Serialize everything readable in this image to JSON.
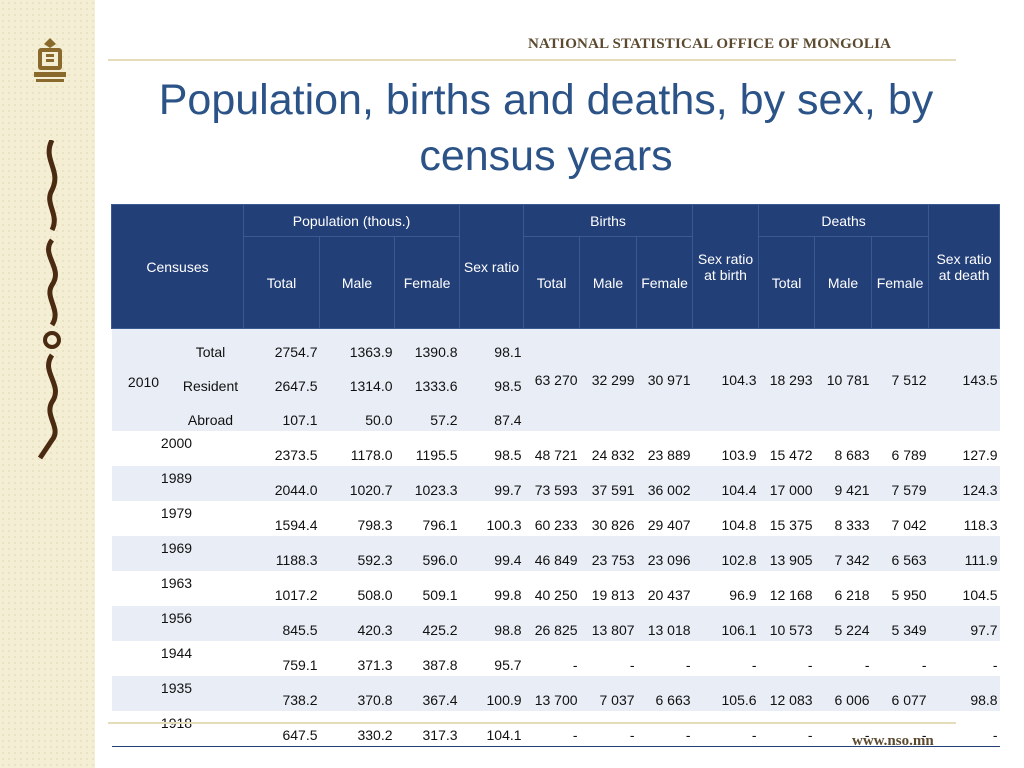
{
  "header": {
    "org_name": "NATIONAL STATISTICAL OFFICE OF MONGOLIA",
    "title": "Population, births and deaths, by sex, by census years",
    "url": "www.nso.mn"
  },
  "table": {
    "headers": {
      "censuses": "Censuses",
      "population": "Population (thous.)",
      "sex_ratio": "Sex ratio",
      "births": "Births",
      "sex_ratio_birth": "Sex ratio at birth",
      "deaths": "Deaths",
      "sex_ratio_death": "Sex ratio at death",
      "total": "Total",
      "male": "Male",
      "female": "Female"
    },
    "row_2010": {
      "year": "2010",
      "subrows": [
        {
          "label": "Total",
          "pop_total": "2754.7",
          "pop_male": "1363.9",
          "pop_female": "1390.8",
          "sex_ratio": "98.1"
        },
        {
          "label": "Resident",
          "pop_total": "2647.5",
          "pop_male": "1314.0",
          "pop_female": "1333.6",
          "sex_ratio": "98.5"
        },
        {
          "label": "Abroad",
          "pop_total": "107.1",
          "pop_male": "50.0",
          "pop_female": "57.2",
          "sex_ratio": "87.4"
        }
      ],
      "births_total": "63 270",
      "births_male": "32 299",
      "births_female": "30 971",
      "sex_ratio_birth": "104.3",
      "deaths_total": "18 293",
      "deaths_male": "10 781",
      "deaths_female": "7 512",
      "sex_ratio_death": "143.5"
    },
    "rows": [
      {
        "year": "2000",
        "pop_total": "2373.5",
        "pop_male": "1178.0",
        "pop_female": "1195.5",
        "sex_ratio": "98.5",
        "births_total": "48 721",
        "births_male": "24 832",
        "births_female": "23 889",
        "sex_ratio_birth": "103.9",
        "deaths_total": "15 472",
        "deaths_male": "8 683",
        "deaths_female": "6 789",
        "sex_ratio_death": "127.9"
      },
      {
        "year": "1989",
        "pop_total": "2044.0",
        "pop_male": "1020.7",
        "pop_female": "1023.3",
        "sex_ratio": "99.7",
        "births_total": "73 593",
        "births_male": "37 591",
        "births_female": "36 002",
        "sex_ratio_birth": "104.4",
        "deaths_total": "17 000",
        "deaths_male": "9 421",
        "deaths_female": "7 579",
        "sex_ratio_death": "124.3"
      },
      {
        "year": "1979",
        "pop_total": "1594.4",
        "pop_male": "798.3",
        "pop_female": "796.1",
        "sex_ratio": "100.3",
        "births_total": "60 233",
        "births_male": "30 826",
        "births_female": "29 407",
        "sex_ratio_birth": "104.8",
        "deaths_total": "15 375",
        "deaths_male": "8 333",
        "deaths_female": "7 042",
        "sex_ratio_death": "118.3"
      },
      {
        "year": "1969",
        "pop_total": "1188.3",
        "pop_male": "592.3",
        "pop_female": "596.0",
        "sex_ratio": "99.4",
        "births_total": "46 849",
        "births_male": "23 753",
        "births_female": "23 096",
        "sex_ratio_birth": "102.8",
        "deaths_total": "13 905",
        "deaths_male": "7 342",
        "deaths_female": "6 563",
        "sex_ratio_death": "111.9"
      },
      {
        "year": "1963",
        "pop_total": "1017.2",
        "pop_male": "508.0",
        "pop_female": "509.1",
        "sex_ratio": "99.8",
        "births_total": "40 250",
        "births_male": "19 813",
        "births_female": "20 437",
        "sex_ratio_birth": "96.9",
        "deaths_total": "12 168",
        "deaths_male": "6 218",
        "deaths_female": "5 950",
        "sex_ratio_death": "104.5"
      },
      {
        "year": "1956",
        "pop_total": "845.5",
        "pop_male": "420.3",
        "pop_female": "425.2",
        "sex_ratio": "98.8",
        "births_total": "26 825",
        "births_male": "13 807",
        "births_female": "13 018",
        "sex_ratio_birth": "106.1",
        "deaths_total": "10 573",
        "deaths_male": "5 224",
        "deaths_female": "5 349",
        "sex_ratio_death": "97.7"
      },
      {
        "year": "1944",
        "pop_total": "759.1",
        "pop_male": "371.3",
        "pop_female": "387.8",
        "sex_ratio": "95.7",
        "births_total": "-",
        "births_male": "-",
        "births_female": "-",
        "sex_ratio_birth": "-",
        "deaths_total": "-",
        "deaths_male": "-",
        "deaths_female": "-",
        "sex_ratio_death": "-"
      },
      {
        "year": "1935",
        "pop_total": "738.2",
        "pop_male": "370.8",
        "pop_female": "367.4",
        "sex_ratio": "100.9",
        "births_total": "13 700",
        "births_male": "7 037",
        "births_female": "6 663",
        "sex_ratio_birth": "105.6",
        "deaths_total": "12 083",
        "deaths_male": "6 006",
        "deaths_female": "6 077",
        "sex_ratio_death": "98.8"
      },
      {
        "year": "1918",
        "pop_total": "647.5",
        "pop_male": "330.2",
        "pop_female": "317.3",
        "sex_ratio": "104.1",
        "births_total": "-",
        "births_male": "-",
        "births_female": "-",
        "sex_ratio_birth": "-",
        "deaths_total": "-",
        "deaths_male": "-",
        "deaths_female": "-",
        "sex_ratio_death": "-"
      }
    ]
  }
}
